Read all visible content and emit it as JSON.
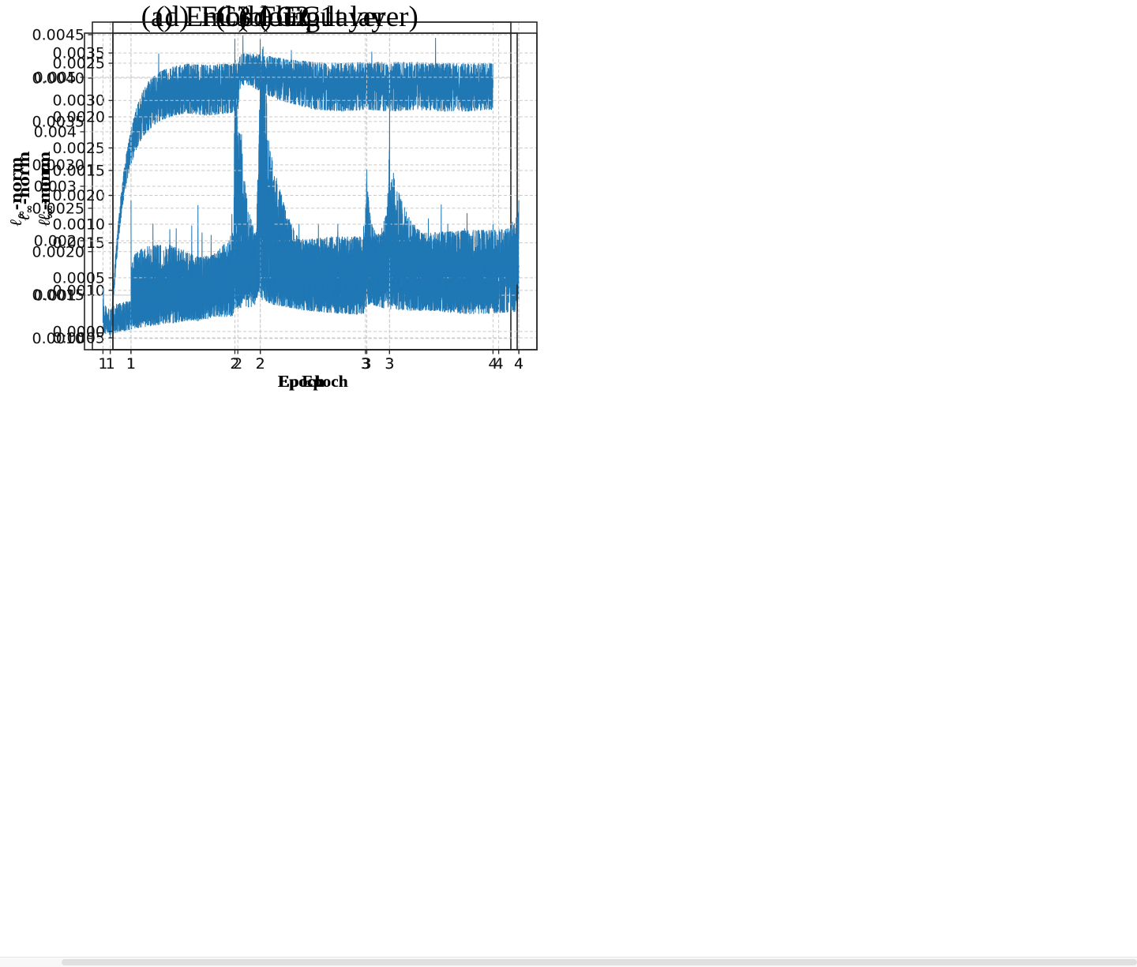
{
  "page": {
    "background": "#ffffff"
  },
  "figure": {
    "line_color": "#1f77b4",
    "grid_color": "#c9c9c9",
    "frame_color": "#262626",
    "text_color": "#111111",
    "xlabel": "Epoch",
    "ylabel_text": "ℓ∞-norm",
    "ylabel_script": "ℓ",
    "ylabel_sub": "∞",
    "ylabel_suffix": "-norm"
  },
  "scrollbar": {
    "orientation": "horizontal",
    "track_color": "#f8f8f8",
    "thumb_color": "#e0e0e0"
  },
  "chart_data": [
    {
      "id": "a",
      "type": "line",
      "caption_label": "(a)",
      "caption_text": "Embedding layer",
      "caption": "(a) Embedding layer",
      "xlabel": "Epoch",
      "ylabel": "ℓ∞-norm",
      "x_ticks": [
        1,
        2,
        3,
        4
      ],
      "x_tick_labels": [
        "1",
        "2",
        "3",
        "4"
      ],
      "xlim": [
        0.86,
        4.14
      ],
      "y_ticks": [
        0.001,
        0.0015,
        0.002,
        0.0025,
        0.003,
        0.0035,
        0.004,
        0.0045
      ],
      "y_tick_labels": [
        "0.0010",
        "0.0015",
        "0.0020",
        "0.0025",
        "0.0030",
        "0.0035",
        "0.0040",
        "0.0045"
      ],
      "ylim": [
        0.00087,
        0.004645
      ],
      "line_color": "#1f77b4",
      "seed": 11,
      "n_points": 2600,
      "envelope": [
        [
          1.0,
          0.001,
          0.00104
        ],
        [
          1.01,
          0.00118,
          0.00128
        ],
        [
          1.02,
          0.00135,
          0.0015
        ],
        [
          1.04,
          0.0017,
          0.00195
        ],
        [
          1.06,
          0.00205,
          0.0023
        ],
        [
          1.08,
          0.00232,
          0.00262
        ],
        [
          1.1,
          0.00255,
          0.00288
        ],
        [
          1.13,
          0.0028,
          0.00318
        ],
        [
          1.16,
          0.00298,
          0.0034
        ],
        [
          1.2,
          0.00315,
          0.00365
        ],
        [
          1.25,
          0.0033,
          0.00385
        ],
        [
          1.3,
          0.00338,
          0.00398
        ],
        [
          1.35,
          0.00345,
          0.00405
        ],
        [
          1.4,
          0.0035,
          0.0041
        ],
        [
          1.5,
          0.00355,
          0.00415
        ],
        [
          1.6,
          0.00358,
          0.00418
        ],
        [
          1.75,
          0.00355,
          0.00417
        ],
        [
          1.9,
          0.00357,
          0.00418
        ],
        [
          2.0,
          0.0036,
          0.00418
        ],
        [
          2.02,
          0.00388,
          0.00428
        ],
        [
          2.06,
          0.00392,
          0.0043
        ],
        [
          2.12,
          0.00388,
          0.00429
        ],
        [
          2.2,
          0.00382,
          0.00428
        ],
        [
          2.3,
          0.00374,
          0.00425
        ],
        [
          2.45,
          0.00368,
          0.00422
        ],
        [
          2.6,
          0.00362,
          0.0042
        ],
        [
          2.8,
          0.0036,
          0.00419
        ],
        [
          3.0,
          0.00362,
          0.0042
        ],
        [
          3.2,
          0.0036,
          0.0042
        ],
        [
          3.4,
          0.00362,
          0.0042
        ],
        [
          3.6,
          0.0036,
          0.00419
        ],
        [
          3.8,
          0.0036,
          0.00418
        ],
        [
          4.0,
          0.00362,
          0.00419
        ]
      ],
      "spikes": [
        [
          1.38,
          0.00428
        ],
        [
          2.04,
          0.00449
        ],
        [
          2.42,
          0.00432
        ],
        [
          3.05,
          0.0043
        ],
        [
          3.55,
          0.00446
        ]
      ]
    },
    {
      "id": "b",
      "type": "line",
      "caption_label": "(b)",
      "caption_text": "FC1",
      "caption": "(b) FC1",
      "xlabel": "Epoch",
      "ylabel": "ℓ∞-norm",
      "x_ticks": [
        1,
        2,
        3,
        4
      ],
      "x_tick_labels": [
        "1",
        "2",
        "3",
        "4"
      ],
      "xlim": [
        0.86,
        4.14
      ],
      "y_ticks": [
        0.0005,
        0.001,
        0.0015,
        0.002,
        0.0025,
        0.003,
        0.0035
      ],
      "y_tick_labels": [
        "0.0005",
        "0.0010",
        "0.0015",
        "0.0020",
        "0.0025",
        "0.0030",
        "0.0035"
      ],
      "ylim": [
        0.000375,
        0.003825
      ],
      "line_color": "#1f77b4",
      "seed": 22,
      "n_points": 2600,
      "envelope": [
        [
          1.0,
          0.00085,
          0.00125
        ],
        [
          1.03,
          0.00072,
          0.0014
        ],
        [
          1.1,
          0.00068,
          0.00148
        ],
        [
          1.2,
          0.0007,
          0.0015
        ],
        [
          1.3,
          0.00072,
          0.0015
        ],
        [
          1.4,
          0.0007,
          0.00145
        ],
        [
          1.5,
          0.00068,
          0.00138
        ],
        [
          1.6,
          0.00068,
          0.00135
        ],
        [
          1.7,
          0.00072,
          0.00148
        ],
        [
          1.8,
          0.00078,
          0.00165
        ],
        [
          1.9,
          0.0008,
          0.0016
        ],
        [
          1.97,
          0.0008,
          0.00165
        ],
        [
          2.0,
          0.001,
          0.0033
        ],
        [
          2.02,
          0.00115,
          0.00367
        ],
        [
          2.04,
          0.0011,
          0.0033
        ],
        [
          2.07,
          0.00105,
          0.0026
        ],
        [
          2.1,
          0.001,
          0.00235
        ],
        [
          2.14,
          0.00098,
          0.00215
        ],
        [
          2.2,
          0.00092,
          0.00185
        ],
        [
          2.28,
          0.00088,
          0.0016
        ],
        [
          2.38,
          0.00085,
          0.0015
        ],
        [
          2.5,
          0.00082,
          0.00148
        ],
        [
          2.65,
          0.0008,
          0.00143
        ],
        [
          2.8,
          0.00082,
          0.00148
        ],
        [
          2.92,
          0.00086,
          0.0016
        ],
        [
          2.98,
          0.0009,
          0.00185
        ],
        [
          3.0,
          0.00095,
          0.00262
        ],
        [
          3.02,
          0.0009,
          0.0024
        ],
        [
          3.05,
          0.00086,
          0.00215
        ],
        [
          3.1,
          0.00083,
          0.00195
        ],
        [
          3.17,
          0.0008,
          0.00175
        ],
        [
          3.25,
          0.00078,
          0.00163
        ],
        [
          3.35,
          0.00076,
          0.00155
        ],
        [
          3.5,
          0.00074,
          0.00148
        ],
        [
          3.65,
          0.00073,
          0.00143
        ],
        [
          3.8,
          0.00074,
          0.0014
        ],
        [
          4.0,
          0.00076,
          0.00135
        ]
      ],
      "spikes": [
        [
          1.17,
          0.0017
        ],
        [
          1.35,
          0.00165
        ],
        [
          1.47,
          0.00168
        ],
        [
          1.62,
          0.00158
        ],
        [
          1.78,
          0.0018
        ],
        [
          2.45,
          0.0017
        ],
        [
          2.6,
          0.00162
        ],
        [
          3.4,
          0.0019
        ],
        [
          3.58,
          0.00165
        ],
        [
          3.85,
          0.00162
        ],
        [
          3.95,
          0.0015
        ]
      ]
    },
    {
      "id": "c",
      "type": "line",
      "caption_label": "(c)",
      "caption_text": "FC2",
      "caption": "(c) FC2",
      "xlabel": "Epoch",
      "ylabel": "ℓ∞-norm",
      "x_ticks": [
        1,
        2,
        3,
        4
      ],
      "x_tick_labels": [
        "1",
        "2",
        "3",
        "4"
      ],
      "xlim": [
        0.86,
        4.14
      ],
      "y_ticks": [
        0.001,
        0.002,
        0.003,
        0.004,
        0.005
      ],
      "y_tick_labels": [
        "0.001",
        "0.002",
        "0.003",
        "0.004",
        "0.005"
      ],
      "ylim": [
        0.0,
        0.00581
      ],
      "line_color": "#1f77b4",
      "seed": 33,
      "n_points": 2600,
      "envelope": [
        [
          1.0,
          0.0003,
          0.0013
        ],
        [
          1.01,
          0.00028,
          0.00085
        ],
        [
          1.05,
          0.00026,
          0.00075
        ],
        [
          1.1,
          0.0003,
          0.00085
        ],
        [
          1.18,
          0.00034,
          0.0009
        ],
        [
          1.25,
          0.00038,
          0.0009
        ],
        [
          1.35,
          0.00042,
          0.00095
        ],
        [
          1.45,
          0.00045,
          0.00098
        ],
        [
          1.55,
          0.00048,
          0.00105
        ],
        [
          1.65,
          0.00052,
          0.00115
        ],
        [
          1.7,
          0.00052,
          0.0012
        ],
        [
          1.72,
          0.0005,
          0.0014
        ],
        [
          1.74,
          0.00053,
          0.00125
        ],
        [
          1.8,
          0.00055,
          0.0015
        ],
        [
          1.88,
          0.00058,
          0.0016
        ],
        [
          1.95,
          0.00058,
          0.0015
        ],
        [
          1.99,
          0.0006,
          0.0016
        ],
        [
          2.0,
          0.0008,
          0.0057
        ],
        [
          2.02,
          0.001,
          0.0042
        ],
        [
          2.05,
          0.0011,
          0.00395
        ],
        [
          2.08,
          0.00105,
          0.003
        ],
        [
          2.12,
          0.00098,
          0.00245
        ],
        [
          2.17,
          0.00092,
          0.00205
        ],
        [
          2.23,
          0.00086,
          0.0018
        ],
        [
          2.3,
          0.0008,
          0.0016
        ],
        [
          2.4,
          0.00076,
          0.00145
        ],
        [
          2.55,
          0.0007,
          0.0013
        ],
        [
          2.7,
          0.00067,
          0.00122
        ],
        [
          2.85,
          0.00064,
          0.00115
        ],
        [
          2.97,
          0.00062,
          0.0012
        ],
        [
          3.0,
          0.0007,
          0.0033
        ],
        [
          3.02,
          0.0008,
          0.0026
        ],
        [
          3.05,
          0.00078,
          0.0023
        ],
        [
          3.1,
          0.00074,
          0.00195
        ],
        [
          3.17,
          0.00072,
          0.00165
        ],
        [
          3.25,
          0.0007,
          0.00148
        ],
        [
          3.4,
          0.0007,
          0.00135
        ],
        [
          3.55,
          0.0007,
          0.00132
        ],
        [
          3.7,
          0.00072,
          0.0013
        ],
        [
          3.85,
          0.00073,
          0.0013
        ],
        [
          4.0,
          0.00075,
          0.00128
        ]
      ],
      "spikes": [
        [
          1.22,
          0.00115
        ],
        [
          1.72,
          0.00265
        ],
        [
          2.0,
          0.0057
        ],
        [
          2.05,
          0.00395
        ],
        [
          2.2,
          0.0022
        ],
        [
          3.0,
          0.0033
        ],
        [
          3.5,
          0.0016
        ],
        [
          3.57,
          0.0015
        ]
      ]
    },
    {
      "id": "d",
      "type": "line",
      "caption_label": "(d)",
      "caption_text": "FC3 (output layer)",
      "caption": "(d) FC3 (output layer)",
      "xlabel": "Epoch",
      "ylabel": "ℓ∞-norm",
      "x_ticks": [
        1,
        2,
        3,
        4
      ],
      "x_tick_labels": [
        "1",
        "2",
        "3",
        "4"
      ],
      "xlim": [
        0.86,
        4.14
      ],
      "y_ticks": [
        0.0,
        0.0005,
        0.001,
        0.0015,
        0.002,
        0.0025
      ],
      "y_tick_labels": [
        "0.0000",
        "0.0005",
        "0.0010",
        "0.0015",
        "0.0020",
        "0.0025"
      ],
      "ylim": [
        -0.00017,
        0.00278
      ],
      "line_color": "#1f77b4",
      "seed": 44,
      "n_points": 2600,
      "envelope": [
        [
          1.0,
          5e-05,
          0.0006
        ],
        [
          1.01,
          5e-05,
          0.0004
        ],
        [
          1.05,
          6e-05,
          0.00045
        ],
        [
          1.1,
          8e-05,
          0.0005
        ],
        [
          1.15,
          0.0001,
          0.00055
        ],
        [
          1.22,
          0.00013,
          0.0006
        ],
        [
          1.3,
          0.00015,
          0.00065
        ],
        [
          1.4,
          0.00018,
          0.00068
        ],
        [
          1.5,
          0.0002,
          0.0007
        ],
        [
          1.6,
          0.00022,
          0.00072
        ],
        [
          1.7,
          0.00024,
          0.00075
        ],
        [
          1.8,
          0.00026,
          0.00078
        ],
        [
          1.9,
          0.00028,
          0.0008
        ],
        [
          1.97,
          0.0003,
          0.00082
        ],
        [
          2.0,
          0.0004,
          0.0027
        ],
        [
          2.02,
          0.0004,
          0.0021
        ],
        [
          2.04,
          0.00038,
          0.00165
        ],
        [
          2.07,
          0.00034,
          0.00125
        ],
        [
          2.1,
          0.00032,
          0.001
        ],
        [
          2.15,
          0.0003,
          0.0009
        ],
        [
          2.25,
          0.00029,
          0.00087
        ],
        [
          2.4,
          0.0003,
          0.00088
        ],
        [
          2.55,
          0.00031,
          0.0009
        ],
        [
          2.7,
          0.00032,
          0.0009
        ],
        [
          2.85,
          0.00033,
          0.0009
        ],
        [
          2.97,
          0.00035,
          0.00095
        ],
        [
          3.0,
          0.00045,
          0.00105
        ],
        [
          3.03,
          0.00036,
          0.00092
        ],
        [
          3.1,
          0.00036,
          0.00092
        ],
        [
          3.2,
          0.00037,
          0.00093
        ],
        [
          3.35,
          0.00038,
          0.00094
        ],
        [
          3.5,
          0.00039,
          0.00095
        ],
        [
          3.65,
          0.0004,
          0.00096
        ],
        [
          3.8,
          0.0004,
          0.00096
        ],
        [
          3.95,
          0.0004,
          0.00098
        ],
        [
          4.0,
          0.00042,
          0.00115
        ]
      ],
      "spikes": [
        [
          1.0,
          0.00122
        ],
        [
          1.3,
          0.00095
        ],
        [
          1.55,
          0.00092
        ],
        [
          2.0,
          0.00272
        ],
        [
          2.02,
          0.00202
        ],
        [
          2.05,
          0.00178
        ],
        [
          2.3,
          0.001
        ],
        [
          2.6,
          0.001
        ],
        [
          2.8,
          0.00098
        ],
        [
          3.0,
          0.00222
        ],
        [
          3.3,
          0.00105
        ],
        [
          3.45,
          0.001
        ],
        [
          3.6,
          0.0011
        ],
        [
          3.8,
          0.001
        ],
        [
          3.95,
          0.00102
        ],
        [
          4.0,
          0.00122
        ]
      ]
    }
  ]
}
